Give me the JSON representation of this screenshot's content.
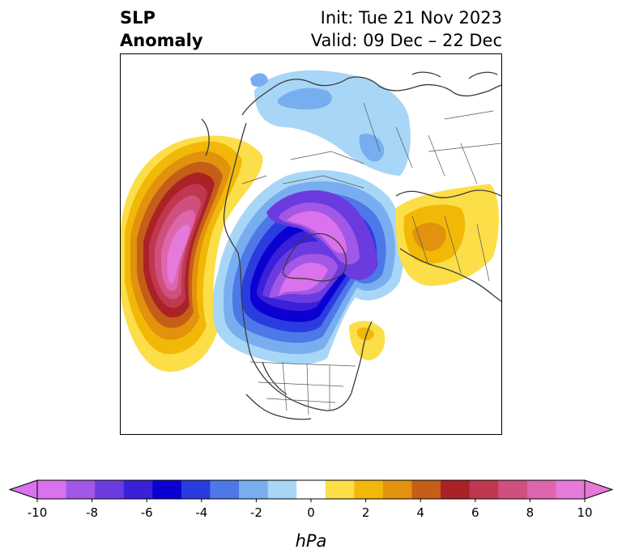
{
  "title": {
    "left_line1": "SLP",
    "left_line2": "Anomaly",
    "init": "Init: Tue 21 Nov 2023",
    "valid": "Valid: 09 Dec – 22 Dec"
  },
  "map": {
    "projection": "north-polar-stereographic",
    "field": "SLP Anomaly"
  },
  "colorbar": {
    "unit": "hPa",
    "extend": "both",
    "range": [
      -10,
      10
    ],
    "ticks": [
      "-10",
      "-8",
      "-6",
      "-4",
      "-2",
      "0",
      "2",
      "4",
      "6",
      "8",
      "10"
    ],
    "colors": [
      "#da72ed",
      "#a158e6",
      "#6b3be0",
      "#3a20d8",
      "#0b00d2",
      "#2a3ce0",
      "#4e78e8",
      "#78aef0",
      "#a8d6f6",
      "#ffffff",
      "#fcde48",
      "#f2b808",
      "#e2920d",
      "#c55e18",
      "#aa2226",
      "#c0384f",
      "#cf4f7d",
      "#dd66ad",
      "#e67ad8"
    ]
  }
}
